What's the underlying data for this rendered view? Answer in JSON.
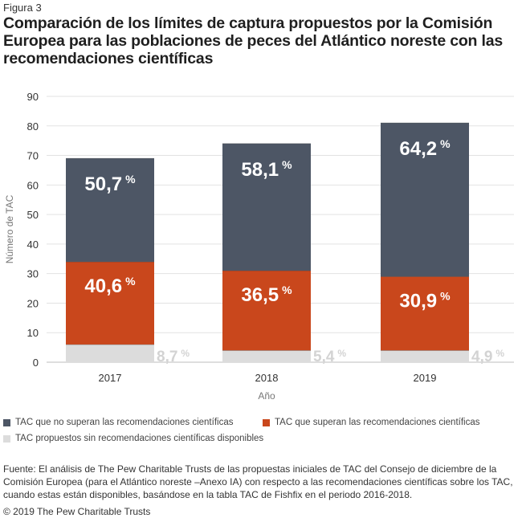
{
  "figure_label": "Figura 3",
  "title": "Comparación de los límites de captura propuestos por la Comisión Europea para las poblaciones de peces del Atlántico noreste con las recomendaciones científicas",
  "colors": {
    "exceed_not": "#4d5665",
    "exceed": "#c9471c",
    "no_advice": "#dcdcdc",
    "grid": "#e2e2e2",
    "axis_text": "#333333",
    "label_white": "#ffffff",
    "label_gray": "#d3d3d3"
  },
  "chart_data": {
    "type": "bar",
    "stacked": true,
    "categories": [
      "2017",
      "2018",
      "2019"
    ],
    "series": [
      {
        "name": "TAC propuestos sin recomendaciones científicas disponibles",
        "key": "no_advice",
        "values": [
          6,
          4,
          4
        ],
        "labels": [
          "8,7",
          "5,4",
          "4,9"
        ],
        "label_position": "outside-right"
      },
      {
        "name": "TAC que superan las recomendaciones científicas",
        "key": "exceed",
        "values": [
          28,
          27,
          25
        ],
        "labels": [
          "40,6",
          "36,5",
          "30,9"
        ],
        "label_position": "inside"
      },
      {
        "name": "TAC que no superan las recomendaciones científicas",
        "key": "exceed_not",
        "values": [
          35,
          43,
          52
        ],
        "labels": [
          "50,7",
          "58,1",
          "64,2"
        ],
        "label_position": "inside-top"
      }
    ],
    "percent_sign": "%",
    "xlabel": "Año",
    "ylabel": "Número de TAC",
    "ylim": [
      0,
      90
    ],
    "yticks": [
      "0",
      "10",
      "20",
      "30",
      "40",
      "50",
      "60",
      "70",
      "80",
      "90"
    ],
    "grid": true
  },
  "legend": [
    {
      "key": "exceed_not",
      "label": "TAC que no superan las recomendaciones científicas"
    },
    {
      "key": "exceed",
      "label": "TAC que superan las recomendaciones científicas"
    },
    {
      "key": "no_advice",
      "label": "TAC propuestos sin recomendaciones científicas disponibles"
    }
  ],
  "source": "Fuente: El análisis de The Pew Charitable Trusts de las propuestas iniciales de TAC del Consejo de diciembre de la Comisión Europea (para el Atlántico noreste –Anexo IA) con respecto a las recomendaciones científicas sobre los TAC, cuando estas están disponibles, basándose en la tabla TAC de Fishfix en el periodo 2016-2018.",
  "copyright": "© 2019 The Pew Charitable Trusts"
}
